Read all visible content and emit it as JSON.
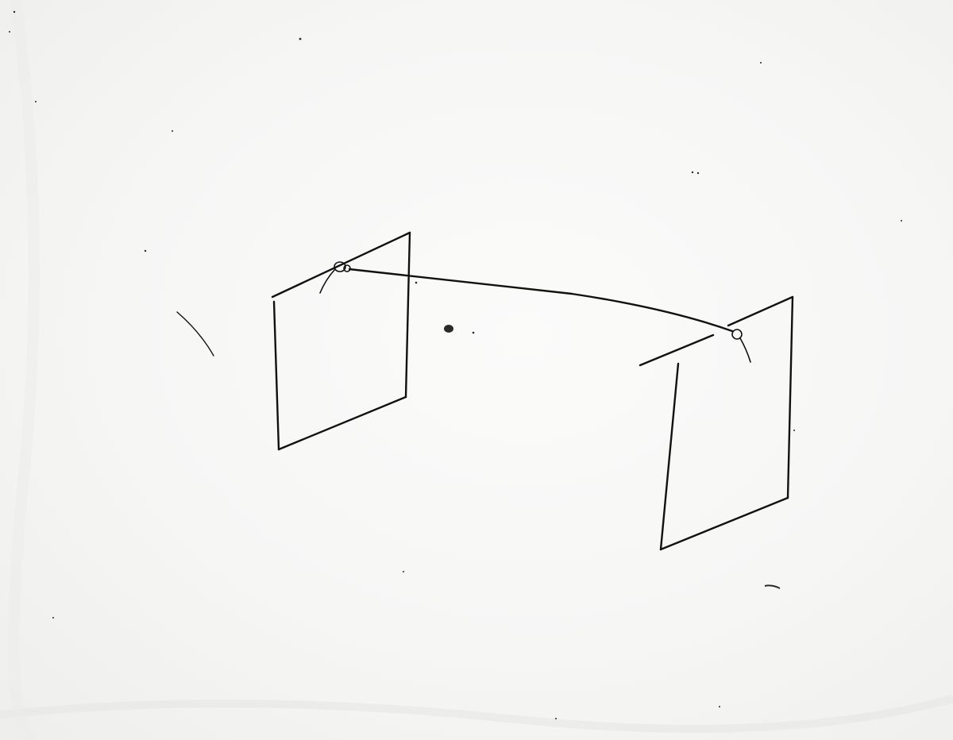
{
  "colors": {
    "paper": "#f4f4f3",
    "ink": "#111111",
    "speck": "#2a2a2a"
  }
}
